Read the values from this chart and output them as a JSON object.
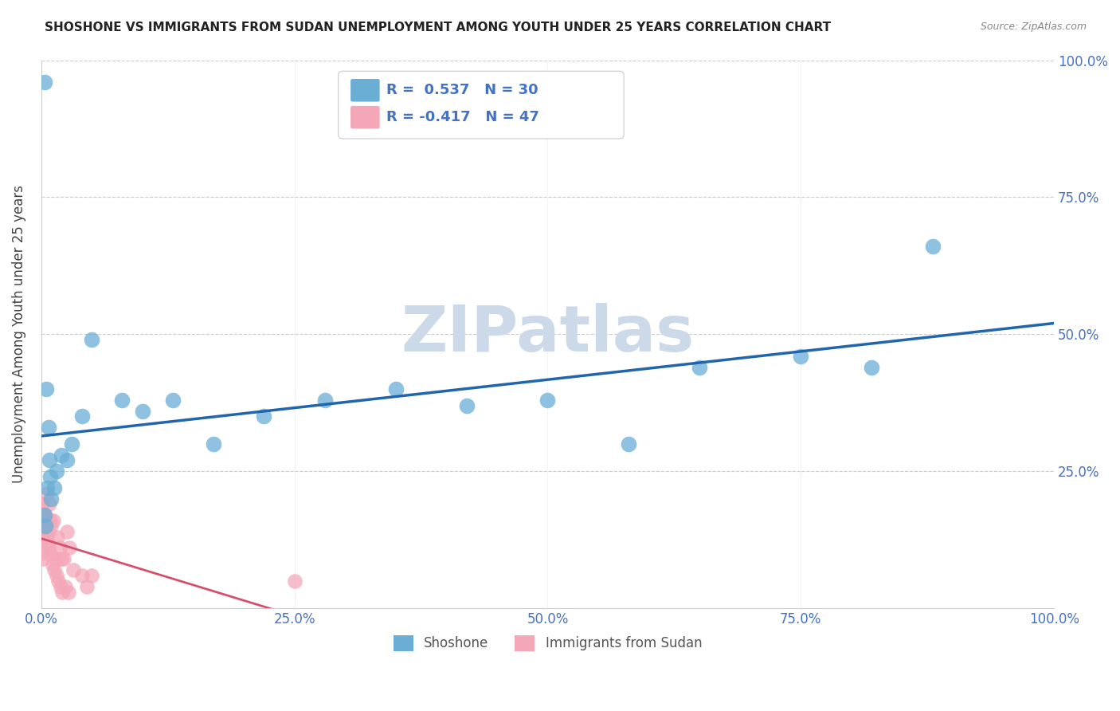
{
  "title": "SHOSHONE VS IMMIGRANTS FROM SUDAN UNEMPLOYMENT AMONG YOUTH UNDER 25 YEARS CORRELATION CHART",
  "source": "Source: ZipAtlas.com",
  "ylabel": "Unemployment Among Youth under 25 years",
  "xlim": [
    0,
    1.0
  ],
  "ylim": [
    0,
    1.0
  ],
  "xtick_labels": [
    "0.0%",
    "25.0%",
    "50.0%",
    "75.0%",
    "100.0%"
  ],
  "right_ytick_labels": [
    "25.0%",
    "50.0%",
    "75.0%",
    "100.0%"
  ],
  "blue_color": "#6aaed6",
  "pink_color": "#f4a7b9",
  "blue_line_color": "#2166ac",
  "pink_line_color": "#d6506e",
  "legend_R1": "R =  0.537",
  "legend_N1": "N = 30",
  "legend_R2": "R = -0.417",
  "legend_N2": "N = 47",
  "label1": "Shoshone",
  "label2": "Immigrants from Sudan",
  "watermark": "ZIPatlas",
  "watermark_color": "#ccd9e8",
  "axis_label_color": "#4472c4",
  "grid_color": "#cccccc",
  "background_color": "#ffffff",
  "shoshone_x": [
    0.003,
    0.005,
    0.007,
    0.008,
    0.01,
    0.013,
    0.02,
    0.025,
    0.03,
    0.04,
    0.05,
    0.08,
    0.1,
    0.13,
    0.17,
    0.22,
    0.28,
    0.35,
    0.42,
    0.5,
    0.58,
    0.65,
    0.75,
    0.82,
    0.88,
    0.003,
    0.006,
    0.015,
    0.009,
    0.004
  ],
  "shoshone_y": [
    0.96,
    0.4,
    0.33,
    0.27,
    0.2,
    0.22,
    0.28,
    0.27,
    0.3,
    0.35,
    0.49,
    0.38,
    0.36,
    0.38,
    0.3,
    0.35,
    0.38,
    0.4,
    0.37,
    0.38,
    0.3,
    0.44,
    0.46,
    0.44,
    0.66,
    0.17,
    0.22,
    0.25,
    0.24,
    0.15
  ],
  "sudan_x": [
    0.0005,
    0.001,
    0.0008,
    0.0012,
    0.0015,
    0.002,
    0.0025,
    0.003,
    0.004,
    0.005,
    0.006,
    0.007,
    0.008,
    0.009,
    0.01,
    0.012,
    0.014,
    0.016,
    0.018,
    0.02,
    0.022,
    0.025,
    0.028,
    0.032,
    0.04,
    0.045,
    0.05,
    0.0003,
    0.0006,
    0.0009,
    0.0018,
    0.0022,
    0.0035,
    0.0042,
    0.0055,
    0.0065,
    0.0075,
    0.0085,
    0.011,
    0.013,
    0.015,
    0.017,
    0.019,
    0.021,
    0.024,
    0.027,
    0.25
  ],
  "sudan_y": [
    0.17,
    0.15,
    0.1,
    0.19,
    0.09,
    0.16,
    0.13,
    0.17,
    0.16,
    0.15,
    0.21,
    0.14,
    0.19,
    0.16,
    0.15,
    0.16,
    0.09,
    0.13,
    0.11,
    0.09,
    0.09,
    0.14,
    0.11,
    0.07,
    0.06,
    0.04,
    0.06,
    0.19,
    0.16,
    0.14,
    0.17,
    0.17,
    0.16,
    0.15,
    0.13,
    0.12,
    0.11,
    0.1,
    0.08,
    0.07,
    0.06,
    0.05,
    0.04,
    0.03,
    0.04,
    0.03,
    0.05
  ]
}
